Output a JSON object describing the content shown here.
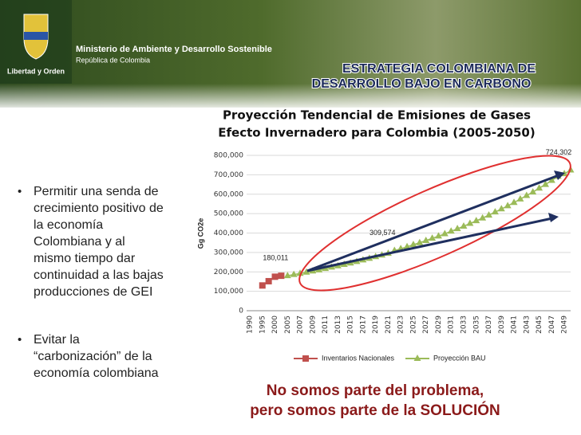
{
  "header": {
    "ministry": "Ministerio de Ambiente y Desarrollo Sostenible",
    "country": "República de Colombia",
    "motto": "Libertad y Orden",
    "title_lines": [
      "ESTRATEGIA COLOMBIANA DE",
      "DESARROLLO BAJO EN CARBONO"
    ]
  },
  "bullets": [
    {
      "lines": [
        "Permitir una senda de",
        "crecimiento positivo de",
        "la economía",
        "Colombiana y  al",
        "mismo tiempo dar",
        "continuidad a las bajas",
        "producciones de GEI"
      ]
    },
    {
      "lines": [
        "Evitar la",
        "“carbonización” de la",
        "economía colombiana"
      ]
    }
  ],
  "footer": {
    "lines": [
      "No somos parte del problema,",
      "pero somos parte de la SOLUCIÓN"
    ]
  },
  "chart_data": {
    "type": "line",
    "title_lines": [
      "Proyección Tendencial de Emisiones de Gases",
      "Efecto Invernadero para Colombia (2005-2050)"
    ],
    "y_label": "Gg CO2e",
    "categories": [
      "1990",
      null,
      "1995",
      null,
      "2000",
      null,
      "2005",
      null,
      "2007",
      null,
      "2009",
      null,
      "2011",
      null,
      "2013",
      null,
      "2015",
      null,
      "2017",
      null,
      "2019",
      null,
      "2021",
      null,
      "2023",
      null,
      "2025",
      null,
      "2027",
      null,
      "2029",
      null,
      "2031",
      null,
      "2033",
      null,
      "2035",
      null,
      "2037",
      null,
      "2039",
      null,
      "2041",
      null,
      "2043",
      null,
      "2045",
      null,
      "2047",
      null,
      "2049",
      null
    ],
    "ylim": [
      0,
      800000
    ],
    "yticks": [
      0,
      {
        "value": 100000,
        "label": "100,000"
      },
      {
        "value": 200000,
        "label": "200,000"
      },
      {
        "value": 300000,
        "label": "300,000"
      },
      {
        "value": 400000,
        "label": "400,000"
      },
      {
        "value": 500000,
        "label": "500,000"
      },
      {
        "value": 600000,
        "label": "600,000"
      },
      {
        "value": 700000,
        "label": "700,000"
      },
      {
        "value": 800000,
        "label": "800,000"
      }
    ],
    "grid": true,
    "series": [
      {
        "name": "Inventarios Nacionales",
        "color": "#c0504d",
        "marker": "square",
        "values": [
          null,
          null,
          130000,
          152000,
          175000,
          180000,
          null,
          null,
          null,
          null,
          null,
          null,
          null,
          null,
          null,
          null,
          null,
          null,
          null,
          null,
          null,
          null,
          null,
          null,
          null,
          null,
          null,
          null,
          null,
          null,
          null,
          null,
          null,
          null,
          null,
          null,
          null,
          null,
          null,
          null,
          null,
          null,
          null,
          null,
          null,
          null,
          null,
          null,
          null,
          null,
          null,
          null
        ]
      },
      {
        "name": "Proyección BAU",
        "color": "#9bbb59",
        "marker": "triangle",
        "values": [
          null,
          null,
          null,
          null,
          null,
          null,
          180011,
          186000,
          192000,
          198000,
          204000,
          210000,
          217000,
          224000,
          231000,
          238000,
          245000,
          253000,
          261000,
          269000,
          278000,
          286000,
          295000,
          309574,
          319000,
          329000,
          340000,
          350000,
          361000,
          373000,
          384000,
          396000,
          409000,
          422000,
          435000,
          449000,
          463000,
          477000,
          492000,
          508000,
          524000,
          540000,
          557000,
          575000,
          593000,
          611000,
          631000,
          650000,
          671000,
          692000,
          705000,
          724302
        ],
        "value_labels": [
          null,
          null,
          null,
          null,
          null,
          null,
          "180,011",
          null,
          null,
          null,
          null,
          null,
          null,
          null,
          null,
          null,
          null,
          null,
          null,
          null,
          null,
          null,
          null,
          "309,574",
          null,
          null,
          null,
          null,
          null,
          null,
          null,
          null,
          null,
          null,
          null,
          null,
          null,
          null,
          null,
          null,
          null,
          null,
          null,
          null,
          null,
          null,
          null,
          null,
          null,
          null,
          null,
          "724,302"
        ]
      }
    ]
  }
}
